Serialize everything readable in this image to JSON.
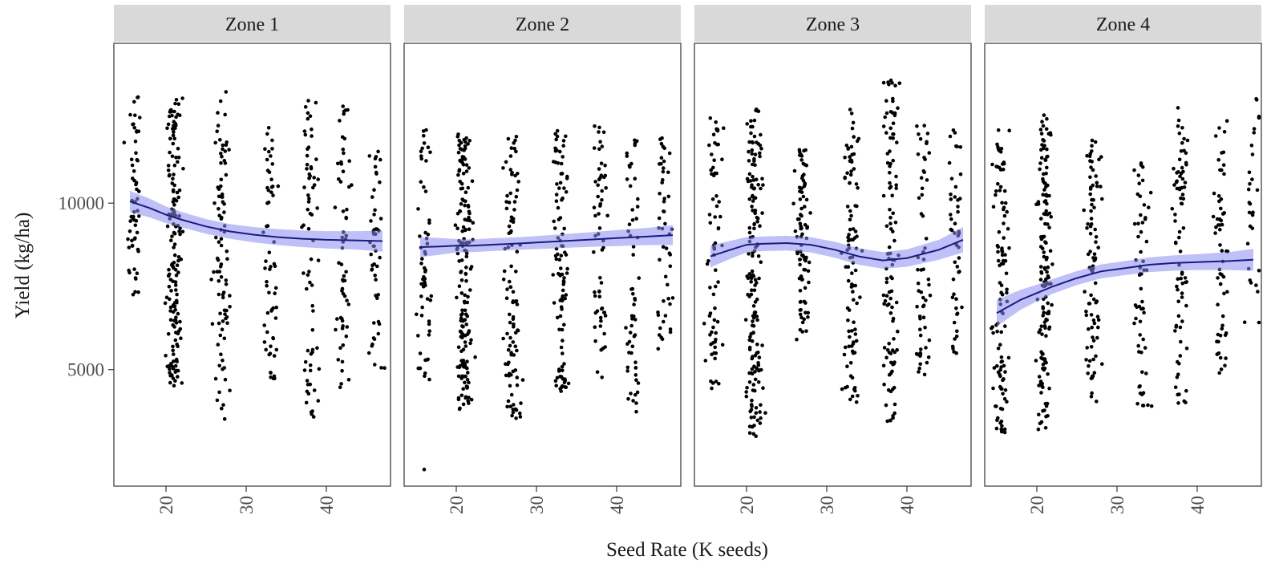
{
  "chart_data": {
    "type": "scatter",
    "xlabel": "Seed Rate (K seeds)",
    "ylabel": "Yield (kg/ha)",
    "x_ticks": [
      20,
      30,
      40
    ],
    "y_ticks": [
      5000,
      10000
    ],
    "xlim": [
      13.5,
      48
    ],
    "ylim": [
      1500,
      14800
    ],
    "grid": false,
    "colors": {
      "points": "#000000",
      "smooth_line": "#1a1a80",
      "confidence_band": "#8c8cf2",
      "strip_fill": "#d9d9d9"
    },
    "panels": [
      {
        "facet": "Zone 1",
        "smooth": [
          [
            15.5,
            10050
          ],
          [
            18,
            9850
          ],
          [
            20,
            9650
          ],
          [
            22,
            9500
          ],
          [
            25,
            9300
          ],
          [
            28,
            9150
          ],
          [
            31,
            9050
          ],
          [
            34,
            8980
          ],
          [
            37,
            8930
          ],
          [
            40,
            8900
          ],
          [
            44,
            8880
          ],
          [
            47,
            8860
          ]
        ],
        "band_halfwidth": [
          320,
          280,
          250,
          230,
          220,
          220,
          230,
          240,
          250,
          260,
          280,
          320
        ],
        "clusters": [
          {
            "x": 16,
            "n": 60,
            "ymin": 7200,
            "ymax": 13200
          },
          {
            "x": 21,
            "n": 160,
            "ymin": 4500,
            "ymax": 13300
          },
          {
            "x": 27,
            "n": 90,
            "ymin": 3500,
            "ymax": 13500
          },
          {
            "x": 33,
            "n": 60,
            "ymin": 4600,
            "ymax": 12300
          },
          {
            "x": 38,
            "n": 70,
            "ymin": 3500,
            "ymax": 13100
          },
          {
            "x": 42,
            "n": 60,
            "ymin": 4200,
            "ymax": 13000
          },
          {
            "x": 46,
            "n": 50,
            "ymin": 4800,
            "ymax": 11600
          }
        ]
      },
      {
        "facet": "Zone 2",
        "smooth": [
          [
            15.5,
            8680
          ],
          [
            18,
            8700
          ],
          [
            20,
            8720
          ],
          [
            22,
            8720
          ],
          [
            25,
            8760
          ],
          [
            28,
            8790
          ],
          [
            31,
            8830
          ],
          [
            34,
            8870
          ],
          [
            37,
            8910
          ],
          [
            40,
            8950
          ],
          [
            44,
            9000
          ],
          [
            47,
            9040
          ]
        ],
        "band_halfwidth": [
          300,
          250,
          200,
          190,
          190,
          190,
          200,
          210,
          220,
          240,
          260,
          300
        ],
        "clusters": [
          {
            "x": 16,
            "n": 60,
            "ymin": 4600,
            "ymax": 12200
          },
          {
            "x": 21,
            "n": 170,
            "ymin": 3700,
            "ymax": 12100
          },
          {
            "x": 27,
            "n": 100,
            "ymin": 3500,
            "ymax": 12000
          },
          {
            "x": 33,
            "n": 100,
            "ymin": 4200,
            "ymax": 12300
          },
          {
            "x": 38,
            "n": 60,
            "ymin": 4700,
            "ymax": 12400
          },
          {
            "x": 42,
            "n": 60,
            "ymin": 3700,
            "ymax": 11900
          },
          {
            "x": 46,
            "n": 50,
            "ymin": 5500,
            "ymax": 12200
          }
        ],
        "outliers": [
          [
            16,
            2000
          ]
        ]
      },
      {
        "facet": "Zone 3",
        "smooth": [
          [
            15.5,
            8400
          ],
          [
            18,
            8600
          ],
          [
            20,
            8750
          ],
          [
            22,
            8780
          ],
          [
            25,
            8800
          ],
          [
            28,
            8750
          ],
          [
            31,
            8600
          ],
          [
            34,
            8400
          ],
          [
            37,
            8280
          ],
          [
            40,
            8350
          ],
          [
            44,
            8600
          ],
          [
            47,
            8900
          ]
        ],
        "band_halfwidth": [
          330,
          270,
          230,
          220,
          220,
          230,
          240,
          250,
          250,
          260,
          300,
          380
        ],
        "clusters": [
          {
            "x": 16,
            "n": 70,
            "ymin": 4400,
            "ymax": 12900
          },
          {
            "x": 21,
            "n": 170,
            "ymin": 3000,
            "ymax": 12900
          },
          {
            "x": 27,
            "n": 90,
            "ymin": 5800,
            "ymax": 11800
          },
          {
            "x": 33,
            "n": 100,
            "ymin": 4000,
            "ymax": 12900
          },
          {
            "x": 38,
            "n": 110,
            "ymin": 3300,
            "ymax": 13800
          },
          {
            "x": 42,
            "n": 60,
            "ymin": 4500,
            "ymax": 12500
          },
          {
            "x": 46,
            "n": 50,
            "ymin": 5400,
            "ymax": 12400
          }
        ]
      },
      {
        "facet": "Zone 4",
        "smooth": [
          [
            15,
            6700
          ],
          [
            18,
            7100
          ],
          [
            20,
            7300
          ],
          [
            22,
            7500
          ],
          [
            25,
            7750
          ],
          [
            28,
            7950
          ],
          [
            31,
            8050
          ],
          [
            34,
            8150
          ],
          [
            37,
            8200
          ],
          [
            40,
            8230
          ],
          [
            44,
            8260
          ],
          [
            47,
            8300
          ]
        ],
        "band_halfwidth": [
          400,
          300,
          250,
          220,
          210,
          210,
          210,
          220,
          230,
          240,
          270,
          330
        ],
        "clusters": [
          {
            "x": 15.5,
            "n": 110,
            "ymin": 3000,
            "ymax": 12400
          },
          {
            "x": 21,
            "n": 150,
            "ymin": 3200,
            "ymax": 12700
          },
          {
            "x": 27,
            "n": 90,
            "ymin": 4000,
            "ymax": 11900
          },
          {
            "x": 33,
            "n": 60,
            "ymin": 3900,
            "ymax": 11400
          },
          {
            "x": 38,
            "n": 80,
            "ymin": 3800,
            "ymax": 13100
          },
          {
            "x": 43,
            "n": 60,
            "ymin": 4900,
            "ymax": 12500
          },
          {
            "x": 47,
            "n": 30,
            "ymin": 5500,
            "ymax": 13300
          }
        ]
      }
    ]
  }
}
